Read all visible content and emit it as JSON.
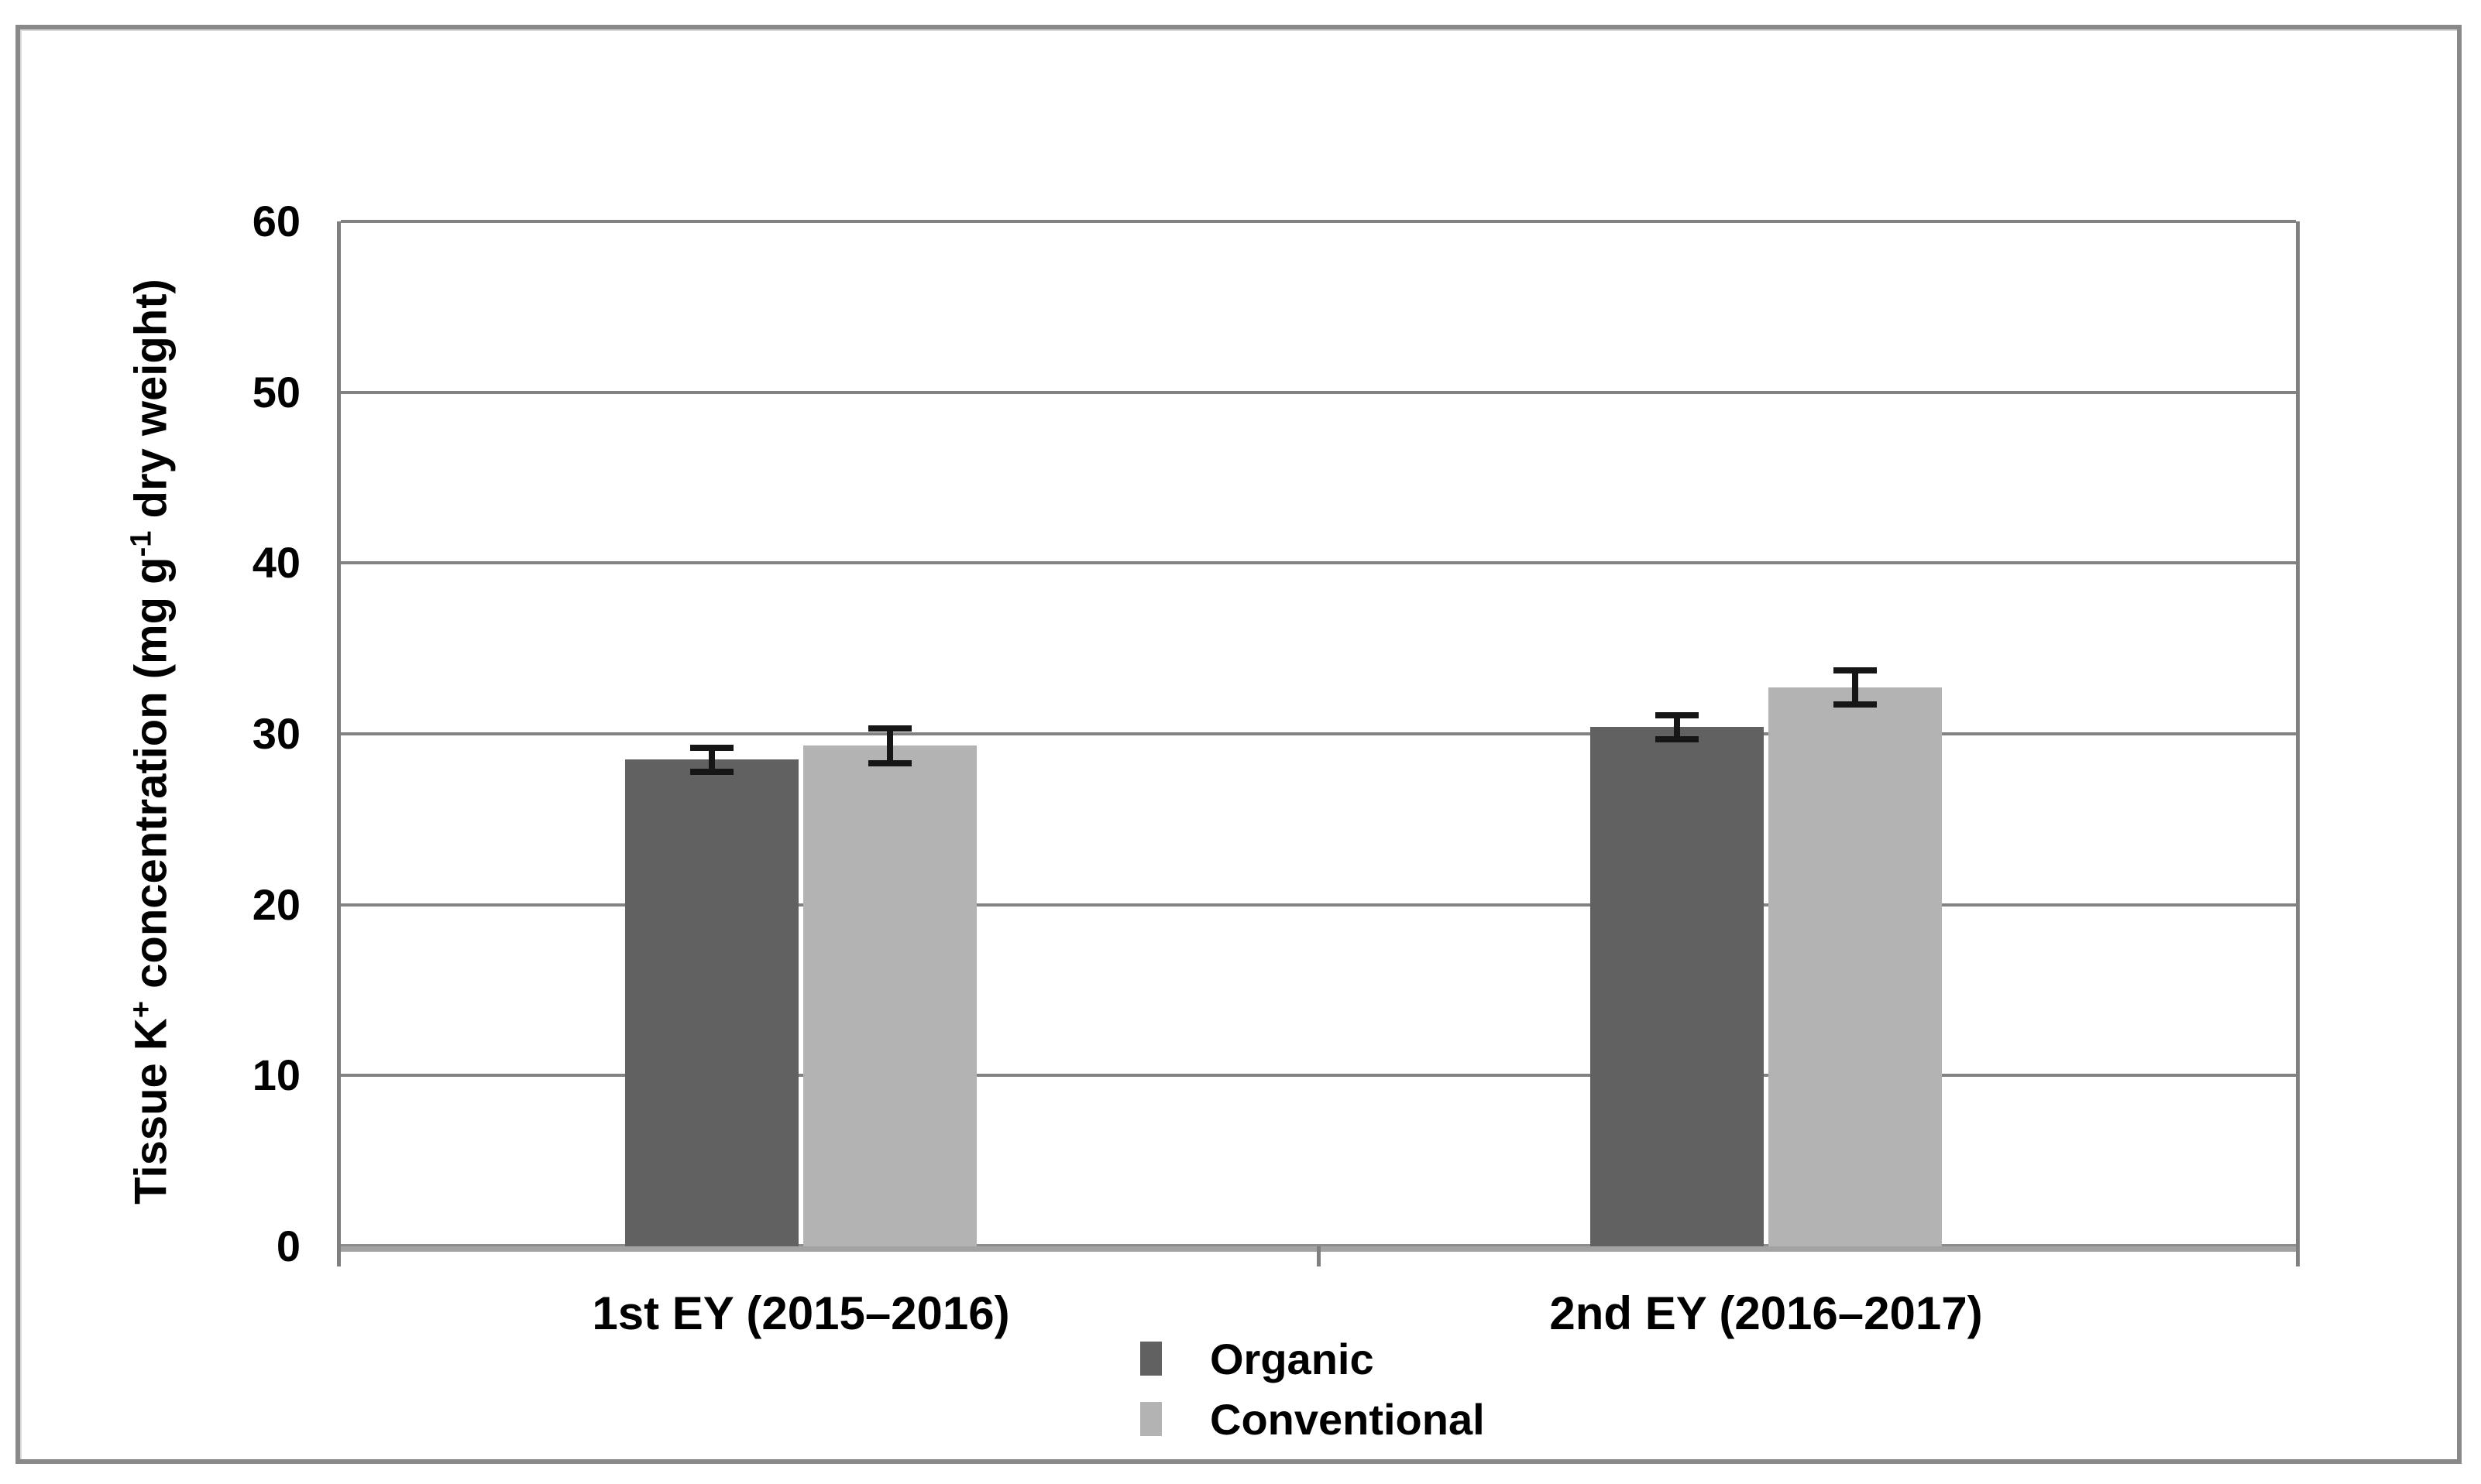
{
  "figure": {
    "border_color": "#898989",
    "background_color": "#ffffff"
  },
  "chart_data": {
    "type": "bar",
    "title": "",
    "ylabel_parts": {
      "pre": "Tissue K",
      "sup1": "+",
      "mid": " concentration (mg g",
      "sup2": "-1",
      "post": " dry weight)"
    },
    "categories": [
      "1st EY (2015–2016)",
      "2nd EY (2016–2017)"
    ],
    "series": [
      {
        "name": "Organic",
        "color": "#616161",
        "values": [
          28.5,
          30.4
        ],
        "errors": [
          0.7,
          0.7
        ]
      },
      {
        "name": "Conventional",
        "color": "#b3b3b3",
        "values": [
          29.3,
          32.7
        ],
        "errors": [
          1.0,
          1.0
        ]
      }
    ],
    "ylim": [
      0,
      60
    ],
    "yticks": [
      0,
      10,
      20,
      30,
      40,
      50,
      60
    ],
    "grid": true,
    "legend_position": "bottom-center",
    "error_bar_color": "#161616",
    "gridline_color": "#828282"
  }
}
